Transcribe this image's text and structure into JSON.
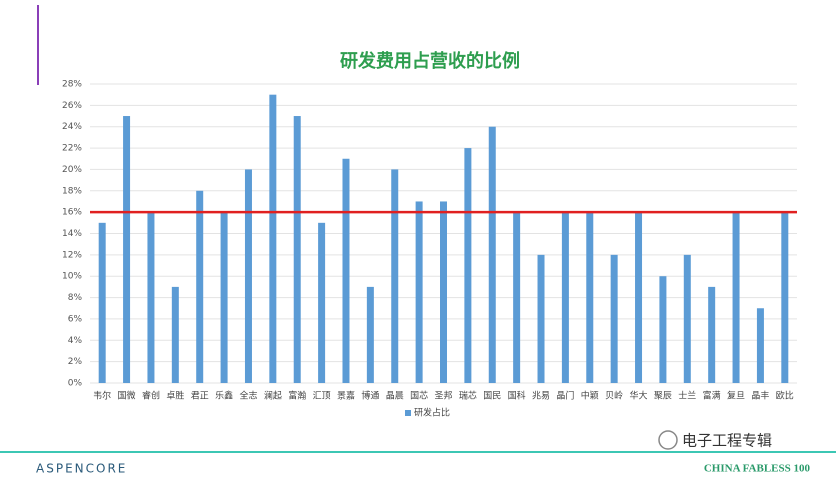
{
  "chart_data": {
    "type": "bar",
    "title": "研发费用占营收的比例",
    "categories": [
      "韦尔",
      "国微",
      "睿创",
      "卓胜",
      "君正",
      "乐鑫",
      "全志",
      "澜起",
      "富瀚",
      "汇顶",
      "景嘉",
      "博通",
      "晶晨",
      "国芯",
      "圣邦",
      "瑞芯",
      "国民",
      "国科",
      "兆易",
      "晶门",
      "中颖",
      "贝岭",
      "华大",
      "聚辰",
      "士兰",
      "富满",
      "复旦",
      "晶丰",
      "欧比"
    ],
    "series": [
      {
        "name": "研发占比",
        "color": "#5b9bd5",
        "values": [
          15,
          25,
          16,
          9,
          18,
          16,
          20,
          27,
          25,
          15,
          21,
          9,
          20,
          17,
          17,
          22,
          24,
          16,
          12,
          16,
          16,
          12,
          16,
          10,
          12,
          9,
          16,
          7,
          16
        ]
      }
    ],
    "ylim": [
      0,
      28
    ],
    "yticks": [
      {
        "value": 0,
        "label": "0%"
      },
      {
        "value": 2,
        "label": "2%"
      },
      {
        "value": 4,
        "label": "4%"
      },
      {
        "value": 6,
        "label": "6%"
      },
      {
        "value": 8,
        "label": "8%"
      },
      {
        "value": 10,
        "label": "10%"
      },
      {
        "value": 12,
        "label": "12%"
      },
      {
        "value": 14,
        "label": "14%"
      },
      {
        "value": 16,
        "label": "16%"
      },
      {
        "value": 18,
        "label": "18%"
      },
      {
        "value": 20,
        "label": "20%"
      },
      {
        "value": 22,
        "label": "22%"
      },
      {
        "value": 24,
        "label": "24%"
      },
      {
        "value": 26,
        "label": "26%"
      },
      {
        "value": 28,
        "label": "28%"
      }
    ],
    "grid": true,
    "legend": "bottom",
    "reference_line": 16,
    "reference_color": "#e02020"
  },
  "footer": {
    "brand": "ASPENCORE",
    "tagline": "CHINA FABLESS 100",
    "watermark": "电子工程专辑"
  }
}
